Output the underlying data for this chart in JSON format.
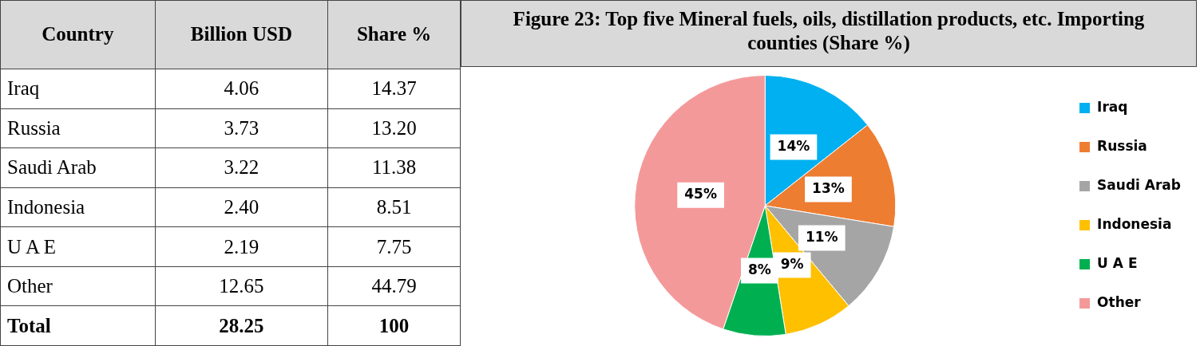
{
  "chart_data": [
    {
      "type": "other",
      "xlabel": "Country",
      "categories": [
        "Iraq",
        "Russia",
        "Saudi Arab",
        "Indonesia",
        "U A E",
        "Other",
        "Total"
      ],
      "series": [
        {
          "name": "Billion USD",
          "values": [
            4.06,
            3.73,
            3.22,
            2.4,
            2.19,
            12.65,
            28.25
          ],
          "value_labels": [
            "4.06",
            "3.73",
            "3.22",
            "2.40",
            "2.19",
            "12.65",
            "28.25"
          ]
        },
        {
          "name": "Share %",
          "values": [
            14.37,
            13.2,
            11.38,
            8.51,
            7.75,
            44.79,
            100
          ],
          "value_labels": [
            "14.37",
            "13.20",
            "11.38",
            "8.51",
            "7.75",
            "44.79",
            "100"
          ]
        }
      ]
    },
    {
      "type": "pie",
      "title": "Figure 23: Top five Mineral fuels, oils, distillation products, etc. Importing counties (Share %)",
      "categories": [
        "Iraq",
        "Russia",
        "Saudi Arab",
        "Indonesia",
        "U A E",
        "Other"
      ],
      "values": [
        14.37,
        13.2,
        11.38,
        8.51,
        7.75,
        44.79
      ],
      "colors": [
        "#00b0f0",
        "#ed7d31",
        "#a5a5a5",
        "#ffc000",
        "#00b050",
        "#f4999a"
      ],
      "value_labels": [
        "14%",
        "13%",
        "11%",
        "9%",
        "8%",
        "45%"
      ],
      "legend": "right"
    }
  ]
}
